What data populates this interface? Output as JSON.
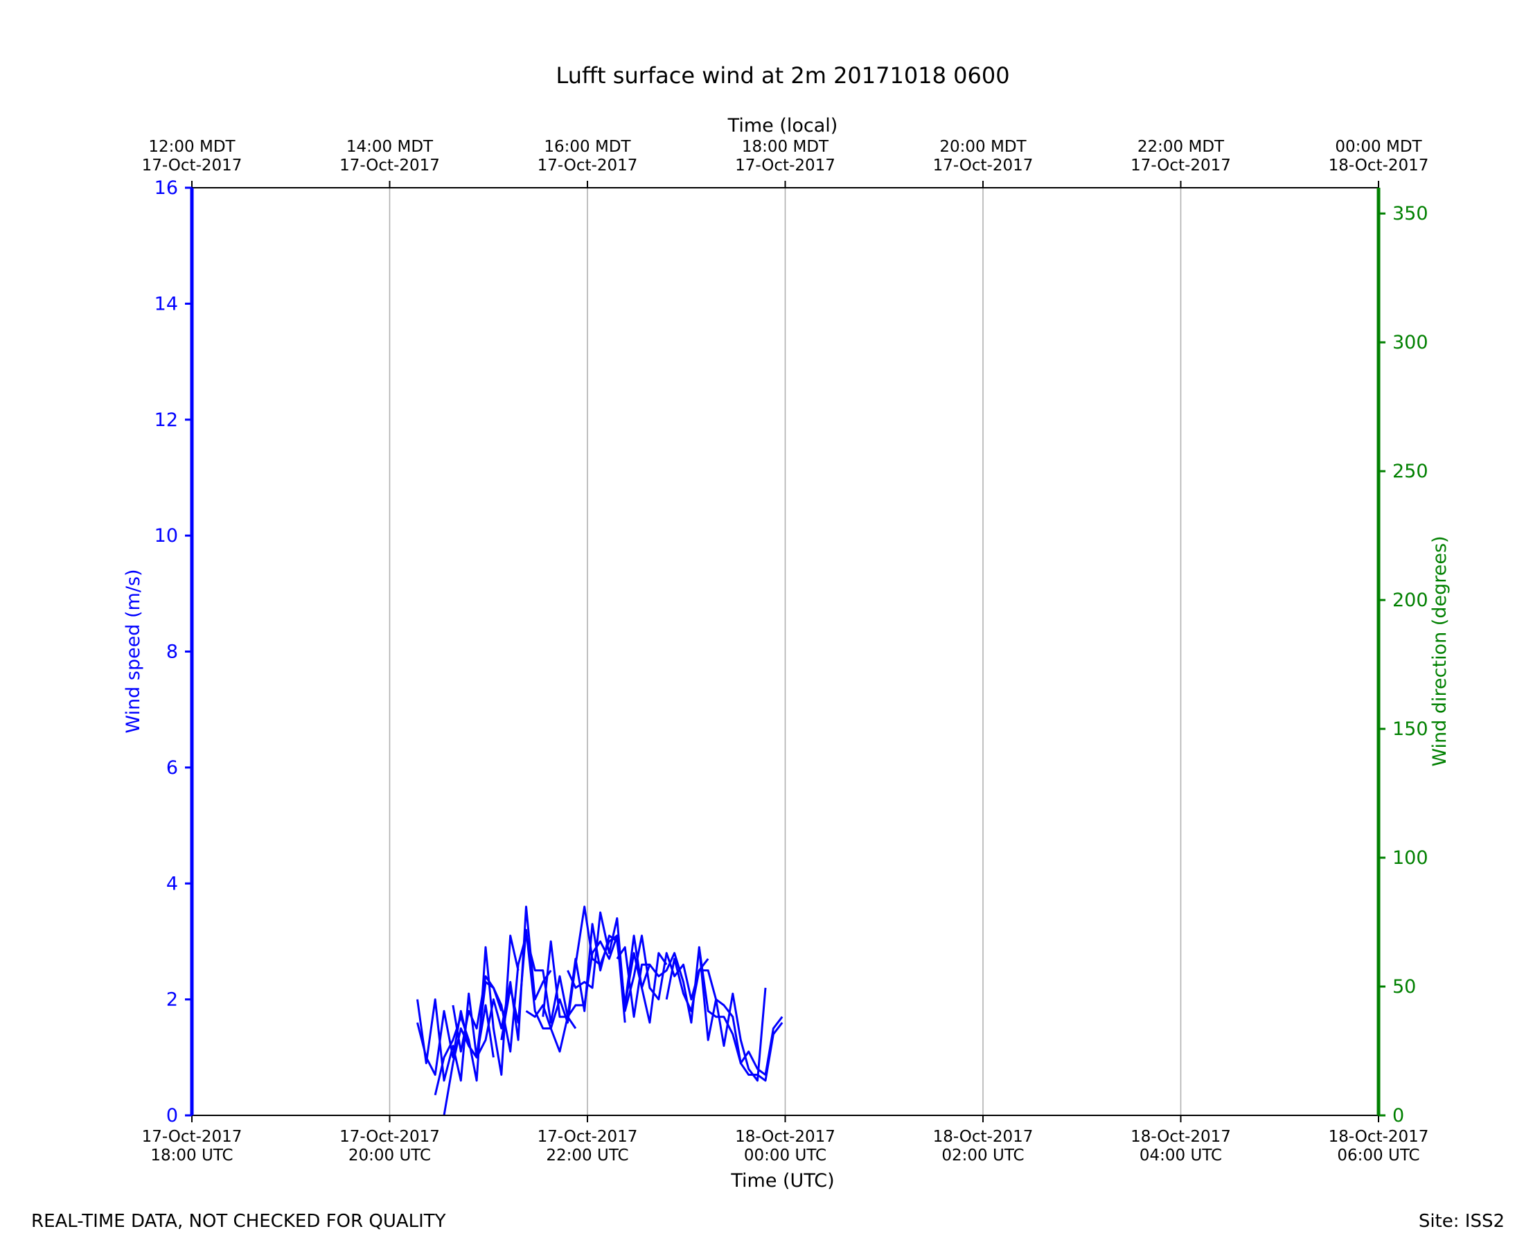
{
  "chart_data": {
    "type": "line",
    "title": "Lufft surface wind at 2m 20171018 0600",
    "xlabel": "Time (UTC)",
    "top_xlabel": "Time (local)",
    "ylabel": "Wind speed (m/s)",
    "ylabel_right": "Wind direction (degrees)",
    "x_range_utc_hours": [
      18,
      30
    ],
    "ylim": [
      0,
      16
    ],
    "ylim_right": [
      0,
      360
    ],
    "yticks": [
      0,
      2,
      4,
      6,
      8,
      10,
      12,
      14,
      16
    ],
    "yticks_right": [
      0,
      50,
      100,
      150,
      200,
      250,
      300,
      350
    ],
    "grid": "vertical",
    "colors": {
      "speed": "#0000ff",
      "direction": "#008000",
      "grid": "#b0b0b0"
    },
    "xticks_bottom": [
      {
        "x": 18,
        "date": "17-Oct-2017",
        "time": "18:00 UTC"
      },
      {
        "x": 20,
        "date": "17-Oct-2017",
        "time": "20:00 UTC"
      },
      {
        "x": 22,
        "date": "17-Oct-2017",
        "time": "22:00 UTC"
      },
      {
        "x": 24,
        "date": "18-Oct-2017",
        "time": "00:00 UTC"
      },
      {
        "x": 26,
        "date": "18-Oct-2017",
        "time": "02:00 UTC"
      },
      {
        "x": 28,
        "date": "18-Oct-2017",
        "time": "04:00 UTC"
      },
      {
        "x": 30,
        "date": "18-Oct-2017",
        "time": "06:00 UTC"
      }
    ],
    "xticks_top": [
      {
        "x": 18,
        "time": "12:00 MDT",
        "date": "17-Oct-2017"
      },
      {
        "x": 20,
        "time": "14:00 MDT",
        "date": "17-Oct-2017"
      },
      {
        "x": 22,
        "time": "16:00 MDT",
        "date": "17-Oct-2017"
      },
      {
        "x": 24,
        "time": "18:00 MDT",
        "date": "17-Oct-2017"
      },
      {
        "x": 26,
        "time": "20:00 MDT",
        "date": "17-Oct-2017"
      },
      {
        "x": 28,
        "time": "22:00 MDT",
        "date": "17-Oct-2017"
      },
      {
        "x": 30,
        "time": "00:00 MDT",
        "date": "18-Oct-2017"
      }
    ],
    "series": [
      {
        "x": [
          20.28,
          20.37,
          20.46,
          20.55,
          20.64,
          20.72,
          20.8,
          20.88,
          20.97,
          21.05,
          21.13
        ],
        "values": [
          2.0,
          0.9,
          2.0,
          0.6,
          1.2,
          0.6,
          2.1,
          1.0,
          2.3,
          2.2,
          1.8
        ]
      },
      {
        "x": [
          20.28,
          20.37,
          20.46,
          20.55,
          20.64,
          20.72,
          20.8,
          20.88,
          20.97,
          21.05
        ],
        "values": [
          1.6,
          1.0,
          0.7,
          1.8,
          1.0,
          1.8,
          1.2,
          1.0,
          1.9,
          1.0
        ]
      },
      {
        "x": [
          20.46,
          20.55,
          20.64,
          20.72,
          20.8,
          20.88,
          20.97,
          21.05,
          21.13,
          21.22,
          21.3
        ],
        "values": [
          0.35,
          1.0,
          1.3,
          1.7,
          1.3,
          0.6,
          2.9,
          1.5,
          0.7,
          3.1,
          2.5
        ]
      },
      {
        "x": [
          20.55,
          20.64,
          20.72,
          20.8,
          20.88,
          20.97,
          21.05,
          21.13,
          21.22,
          21.3,
          21.38,
          21.47,
          21.55,
          21.63
        ],
        "values": [
          0.0,
          0.9,
          1.5,
          1.2,
          1.0,
          1.3,
          2.0,
          1.5,
          2.3,
          1.3,
          3.6,
          2.0,
          2.3,
          2.5
        ]
      },
      {
        "x": [
          20.64,
          20.72,
          20.8,
          20.88,
          20.97,
          21.05,
          21.13,
          21.22,
          21.3,
          21.38,
          21.47,
          21.55,
          21.63,
          21.72,
          21.8,
          21.88
        ],
        "values": [
          1.9,
          1.1,
          1.8,
          1.5,
          2.4,
          2.2,
          1.9,
          1.1,
          2.6,
          3.1,
          2.5,
          2.5,
          1.6,
          2.4,
          1.7,
          1.5
        ]
      },
      {
        "x": [
          21.13,
          21.22,
          21.3,
          21.38,
          21.47,
          21.55,
          21.63,
          21.72,
          21.8,
          21.88,
          21.97,
          22.05,
          22.13,
          22.22,
          22.3,
          22.38
        ],
        "values": [
          1.3,
          2.2,
          1.6,
          3.2,
          1.8,
          1.5,
          1.5,
          2.0,
          1.6,
          2.6,
          3.6,
          2.7,
          2.6,
          3.0,
          3.1,
          1.6
        ]
      },
      {
        "x": [
          21.38,
          21.47,
          21.55,
          21.63,
          21.72,
          21.8,
          21.88,
          21.97,
          22.05,
          22.13,
          22.22,
          22.3,
          22.38,
          22.47,
          22.55,
          22.63
        ],
        "values": [
          1.8,
          1.7,
          1.9,
          1.5,
          1.1,
          1.7,
          1.9,
          1.9,
          2.8,
          3.0,
          2.7,
          3.1,
          1.9,
          2.8,
          2.2,
          2.6
        ]
      },
      {
        "x": [
          21.55,
          21.63,
          21.72,
          21.8,
          21.88,
          21.97,
          22.05,
          22.13,
          22.22,
          22.3,
          22.38,
          22.47,
          22.55,
          22.63,
          22.72,
          22.8
        ],
        "values": [
          1.7,
          3.0,
          1.7,
          1.7,
          2.7,
          1.8,
          3.3,
          2.5,
          3.1,
          3.0,
          1.9,
          3.1,
          2.2,
          1.6,
          2.8,
          2.6
        ]
      },
      {
        "x": [
          21.8,
          21.88,
          21.97,
          22.05,
          22.13,
          22.22,
          22.3,
          22.38,
          22.47,
          22.55,
          22.63,
          22.72,
          22.8,
          22.88,
          22.97,
          23.05,
          23.13,
          23.22
        ],
        "values": [
          2.5,
          2.2,
          2.3,
          2.2,
          3.5,
          2.8,
          3.4,
          1.8,
          2.4,
          3.1,
          2.2,
          2.0,
          2.8,
          2.4,
          2.6,
          2.0,
          2.5,
          2.7
        ]
      },
      {
        "x": [
          22.3,
          22.38,
          22.47,
          22.55,
          22.63,
          22.72,
          22.8,
          22.88,
          22.97,
          23.05,
          23.13,
          23.22,
          23.3,
          23.38,
          23.47,
          23.55,
          23.63,
          23.72,
          23.8
        ],
        "values": [
          2.7,
          2.9,
          1.7,
          2.6,
          2.6,
          2.4,
          2.5,
          2.8,
          2.3,
          1.6,
          2.9,
          1.3,
          2.0,
          1.2,
          2.1,
          1.3,
          0.8,
          0.6,
          2.2
        ]
      },
      {
        "x": [
          22.8,
          22.88,
          22.97,
          23.05,
          23.13,
          23.22,
          23.3,
          23.38,
          23.47,
          23.55,
          23.63,
          23.72,
          23.8,
          23.88,
          23.97
        ],
        "values": [
          2.0,
          2.7,
          2.1,
          1.8,
          2.5,
          2.5,
          2.0,
          1.9,
          1.7,
          0.9,
          1.1,
          0.8,
          0.7,
          1.5,
          1.7
        ]
      },
      {
        "x": [
          23.13,
          23.22,
          23.3,
          23.38,
          23.47,
          23.55,
          23.63,
          23.72,
          23.8,
          23.88,
          23.97
        ],
        "values": [
          2.9,
          1.8,
          1.7,
          1.7,
          1.4,
          0.9,
          0.7,
          0.7,
          0.6,
          1.4,
          1.6
        ]
      }
    ]
  },
  "footer": {
    "left": "REAL-TIME DATA, NOT CHECKED FOR QUALITY",
    "right": "Site: ISS2"
  }
}
